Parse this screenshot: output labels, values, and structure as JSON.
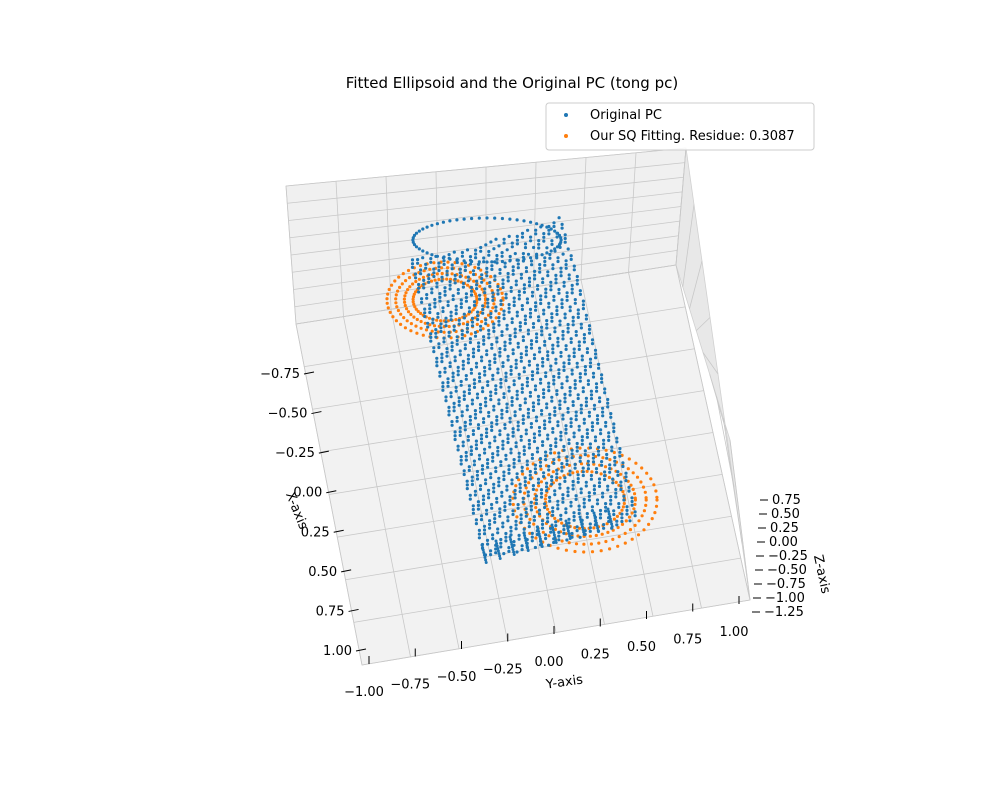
{
  "chart_data": {
    "type": "scatter",
    "projection": "3d",
    "title": "Fitted Ellipsoid and the Original PC (tong pc)",
    "xlabel": "X-axis",
    "ylabel": "Y-axis",
    "zlabel": "Z-axis",
    "xlim": [
      -1.0,
      1.0
    ],
    "ylim": [
      -1.0,
      1.0
    ],
    "zlim": [
      -1.25,
      0.75
    ],
    "x_ticks": [
      "−0.75",
      "−0.50",
      "−0.25",
      "0.00",
      "0.25",
      "0.50",
      "0.75",
      "1.00"
    ],
    "y_ticks": [
      "−1.00",
      "−0.75",
      "−0.50",
      "−0.25",
      "0.00",
      "0.25",
      "0.50",
      "0.75",
      "1.00"
    ],
    "z_ticks": [
      "0.75",
      "0.50",
      "0.25",
      "0.00",
      "−0.25",
      "−0.50",
      "−0.75",
      "−1.00",
      "−1.25"
    ],
    "grid": true,
    "legend_position": "top-right",
    "series": [
      {
        "name": "Original PC",
        "color": "#1f77b4",
        "shape": "cylinder",
        "center": [
          0.0,
          0.0,
          -0.3
        ],
        "radius_x": 0.25,
        "radius_y": 0.3,
        "z_range": [
          -1.25,
          0.65
        ]
      },
      {
        "name": "Our SQ Fitting. Residue: 0.3087",
        "color": "#ff7f0e",
        "shape": "superquadric",
        "center": [
          0.0,
          0.0,
          -0.3
        ],
        "radii": [
          0.6,
          0.3,
          0.95
        ]
      }
    ]
  }
}
